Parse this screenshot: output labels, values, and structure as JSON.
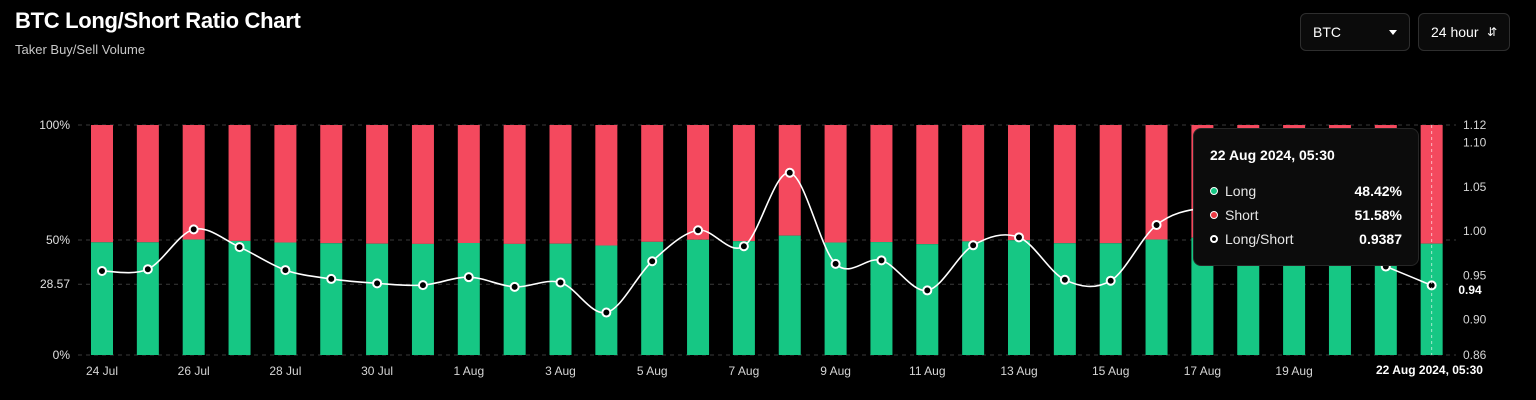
{
  "header": {
    "title": "BTC Long/Short Ratio Chart",
    "subtitle": "Taker Buy/Sell Volume"
  },
  "controls": {
    "coin": "BTC",
    "range": "24 hour"
  },
  "colors": {
    "long": "#16c784",
    "short": "#f4495e",
    "line": "#ffffff",
    "grid": "#3a3a3a"
  },
  "chart_data": {
    "type": "bar",
    "title": "BTC Long/Short Ratio Chart",
    "left_axis_ticks": [
      "100%",
      "50%",
      "28.57",
      "0%"
    ],
    "right_axis_ticks": [
      "1.12",
      "1.10",
      "1.05",
      "1.00",
      "0.95",
      "0.94",
      "0.90",
      "0.86"
    ],
    "right_ylim": [
      0.86,
      1.12
    ],
    "x_tick_labels": [
      "24 Jul",
      "26 Jul",
      "28 Jul",
      "30 Jul",
      "1 Aug",
      "3 Aug",
      "5 Aug",
      "7 Aug",
      "9 Aug",
      "11 Aug",
      "13 Aug",
      "15 Aug",
      "17 Aug",
      "19 Aug"
    ],
    "categories": [
      "24 Jul",
      "25 Jul",
      "26 Jul",
      "27 Jul",
      "28 Jul",
      "29 Jul",
      "30 Jul",
      "31 Jul",
      "1 Aug",
      "2 Aug",
      "3 Aug",
      "4 Aug",
      "5 Aug",
      "6 Aug",
      "7 Aug",
      "8 Aug",
      "9 Aug",
      "10 Aug",
      "11 Aug",
      "12 Aug",
      "13 Aug",
      "14 Aug",
      "15 Aug",
      "16 Aug",
      "17 Aug",
      "18 Aug",
      "19 Aug",
      "20 Aug",
      "21 Aug",
      "22 Aug"
    ],
    "series": [
      {
        "name": "Long",
        "values": [
          49.0,
          49.0,
          50.2,
          49.6,
          48.9,
          48.6,
          48.4,
          48.3,
          48.7,
          48.3,
          48.4,
          47.6,
          49.2,
          50.1,
          49.5,
          51.9,
          48.9,
          49.1,
          48.2,
          49.4,
          49.9,
          48.6,
          48.6,
          50.2,
          51.0,
          50.5,
          50.0,
          49.5,
          49.0,
          48.42
        ]
      },
      {
        "name": "Short",
        "values": [
          51.0,
          51.0,
          49.8,
          50.4,
          51.1,
          51.4,
          51.6,
          51.7,
          51.3,
          51.7,
          51.6,
          52.4,
          50.8,
          49.9,
          50.5,
          48.1,
          51.1,
          50.9,
          51.8,
          50.6,
          50.1,
          51.4,
          51.4,
          49.8,
          49.0,
          49.5,
          50.0,
          50.5,
          51.0,
          51.58
        ]
      },
      {
        "name": "Long/Short",
        "values": [
          0.955,
          0.957,
          1.002,
          0.982,
          0.956,
          0.946,
          0.941,
          0.939,
          0.948,
          0.937,
          0.942,
          0.908,
          0.966,
          1.001,
          0.983,
          1.066,
          0.963,
          0.967,
          0.933,
          0.984,
          0.993,
          0.945,
          0.944,
          1.007,
          1.026,
          1.02,
          1.0,
          0.98,
          0.96,
          0.9387
        ]
      }
    ],
    "reference_line": 0.94,
    "grid": true
  },
  "tooltip": {
    "date": "22 Aug 2024, 05:30",
    "long_label": "Long",
    "long_value": "48.42%",
    "short_label": "Short",
    "short_value": "51.58%",
    "ratio_label": "Long/Short",
    "ratio_value": "0.9387"
  },
  "crosshair": {
    "date_label": "22 Aug 2024, 05:30",
    "ratio_label": "0.94"
  }
}
